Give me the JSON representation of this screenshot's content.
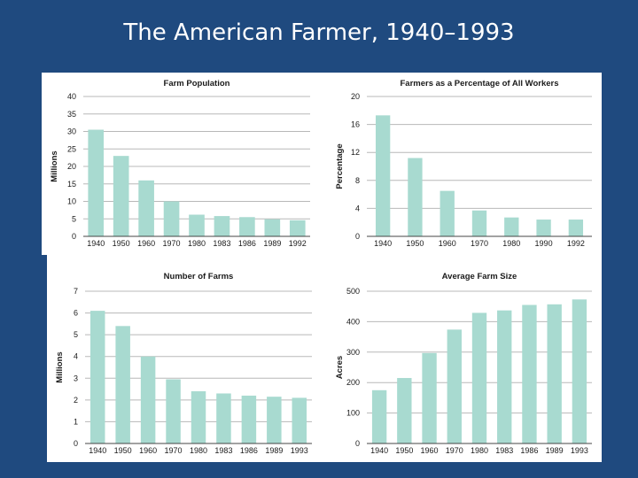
{
  "slide": {
    "title": "The American Farmer, 1940–1993"
  },
  "colors": {
    "background": "#1f4a7f",
    "bar": "#a8dad0",
    "panel": "#ffffff"
  },
  "chart_data": [
    {
      "type": "bar",
      "title": "Farm Population",
      "ylabel": "Millions",
      "xlabel": "",
      "categories": [
        "1940",
        "1950",
        "1960",
        "1970",
        "1980",
        "1983",
        "1986",
        "1989",
        "1992"
      ],
      "values": [
        30.5,
        23,
        16,
        10,
        6.2,
        5.8,
        5.5,
        4.9,
        4.6
      ],
      "ylim": [
        0,
        40
      ],
      "yticks": [
        0,
        5,
        10,
        15,
        20,
        25,
        30,
        35,
        40
      ],
      "grid": true
    },
    {
      "type": "bar",
      "title": "Farmers as a Percentage of All Workers",
      "ylabel": "Percentage",
      "xlabel": "",
      "categories": [
        "1940",
        "1950",
        "1960",
        "1970",
        "1980",
        "1990",
        "1992"
      ],
      "values": [
        17.3,
        11.2,
        6.5,
        3.7,
        2.7,
        2.4,
        2.4
      ],
      "ylim": [
        0,
        20
      ],
      "yticks": [
        0,
        4,
        8,
        12,
        16,
        20
      ],
      "grid": true
    },
    {
      "type": "bar",
      "title": "Number of Farms",
      "ylabel": "Millions",
      "xlabel": "",
      "categories": [
        "1940",
        "1950",
        "1960",
        "1970",
        "1980",
        "1983",
        "1986",
        "1989",
        "1993"
      ],
      "values": [
        6.1,
        5.4,
        4.0,
        2.95,
        2.4,
        2.3,
        2.2,
        2.15,
        2.1
      ],
      "ylim": [
        0,
        7
      ],
      "yticks": [
        0,
        1,
        2,
        3,
        4,
        5,
        6,
        7
      ],
      "grid": true
    },
    {
      "type": "bar",
      "title": "Average Farm Size",
      "ylabel": "Acres",
      "xlabel": "",
      "categories": [
        "1940",
        "1950",
        "1960",
        "1970",
        "1980",
        "1983",
        "1986",
        "1989",
        "1993"
      ],
      "values": [
        175,
        215,
        297,
        374,
        429,
        437,
        455,
        457,
        473
      ],
      "ylim": [
        0,
        500
      ],
      "yticks": [
        0,
        100,
        200,
        300,
        400,
        500
      ],
      "grid": true
    }
  ]
}
